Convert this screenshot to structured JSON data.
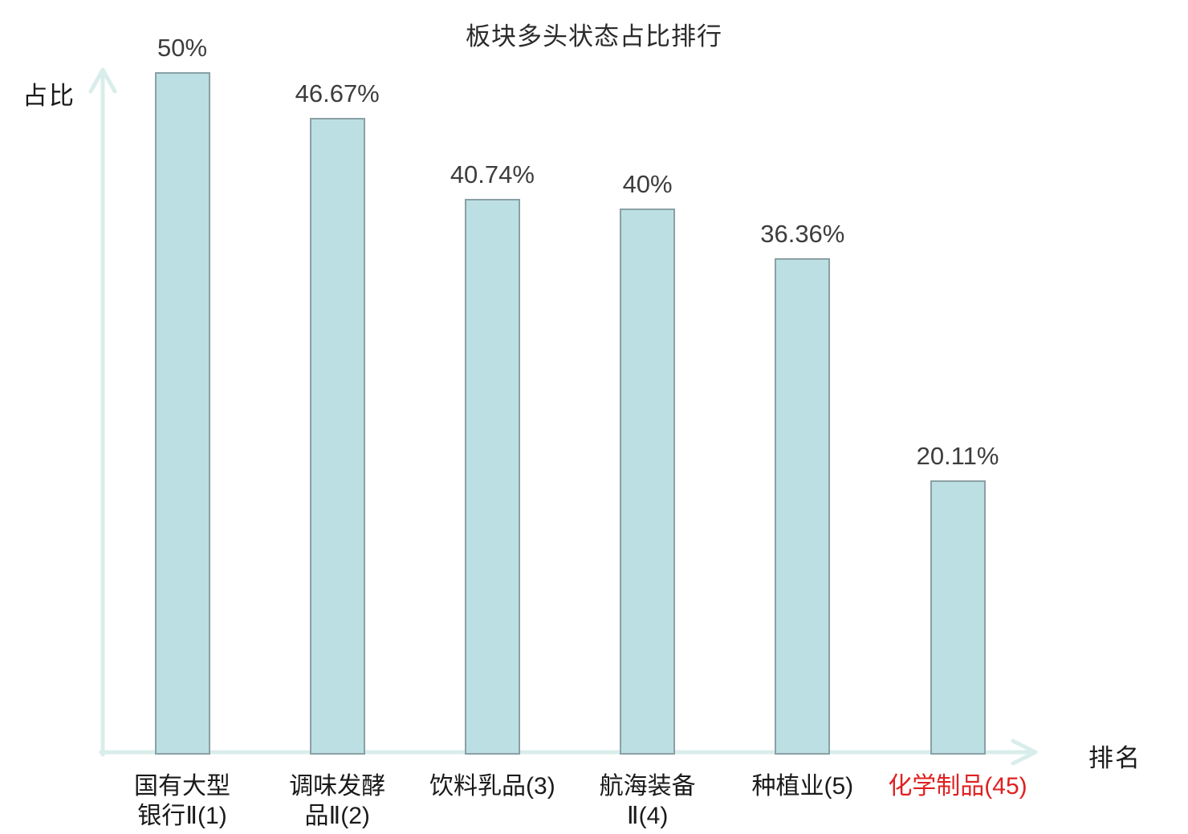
{
  "chart_data": {
    "type": "bar",
    "title": "板块多头状态占比排行",
    "ylabel": "占比",
    "xlabel": "排名",
    "categories": [
      "国有大型银行Ⅱ(1)",
      "调味发酵品Ⅱ(2)",
      "饮料乳品(3)",
      "航海装备Ⅱ(4)",
      "种植业(5)",
      "化学制品(45)"
    ],
    "category_lines": [
      [
        "国有大型",
        "银行Ⅱ(1)"
      ],
      [
        "调味发酵",
        "品Ⅱ(2)"
      ],
      [
        "饮料乳品(3)"
      ],
      [
        "航海装备",
        "Ⅱ(4)"
      ],
      [
        "种植业(5)"
      ],
      [
        "化学制品(45)"
      ]
    ],
    "values": [
      50,
      46.67,
      40.74,
      40,
      36.36,
      20.11
    ],
    "value_labels": [
      "50%",
      "46.67%",
      "40.74%",
      "40%",
      "36.36%",
      "20.11%"
    ],
    "highlight_index": 5,
    "ylim": [
      0,
      53
    ],
    "grid": false,
    "legend": "none",
    "colors": {
      "bar_fill": "#bcdfe3",
      "bar_border": "#8aa0a5",
      "axis": "#d9edeb",
      "value_label": "#3d3d3d",
      "tick_label": "#1a1a1a",
      "highlight": "#e02020"
    }
  }
}
